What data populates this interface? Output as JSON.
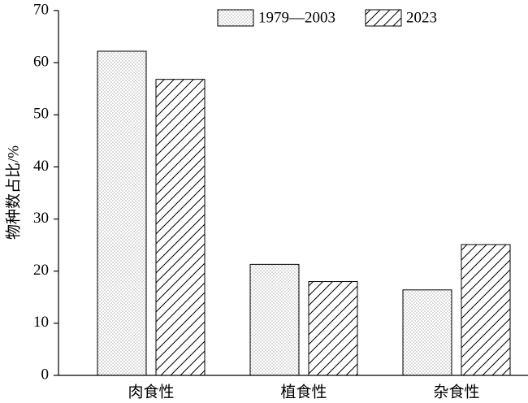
{
  "chart_data": {
    "type": "bar",
    "y_label": "物种数占比/%",
    "categories": [
      "肉食性",
      "植食性",
      "杂食性"
    ],
    "series": [
      {
        "name": "1979—2003",
        "color": "#000000",
        "pattern": "dots",
        "values": [
          62.2,
          21.3,
          16.4
        ]
      },
      {
        "name": "2023",
        "color": "#000000",
        "pattern": "diagonal",
        "values": [
          56.8,
          18.0,
          25.1
        ]
      }
    ],
    "ylim": [
      0,
      70
    ],
    "yticks": [
      0,
      10,
      20,
      30,
      40,
      50,
      60,
      70
    ],
    "grid": false,
    "legend": "upper right"
  }
}
